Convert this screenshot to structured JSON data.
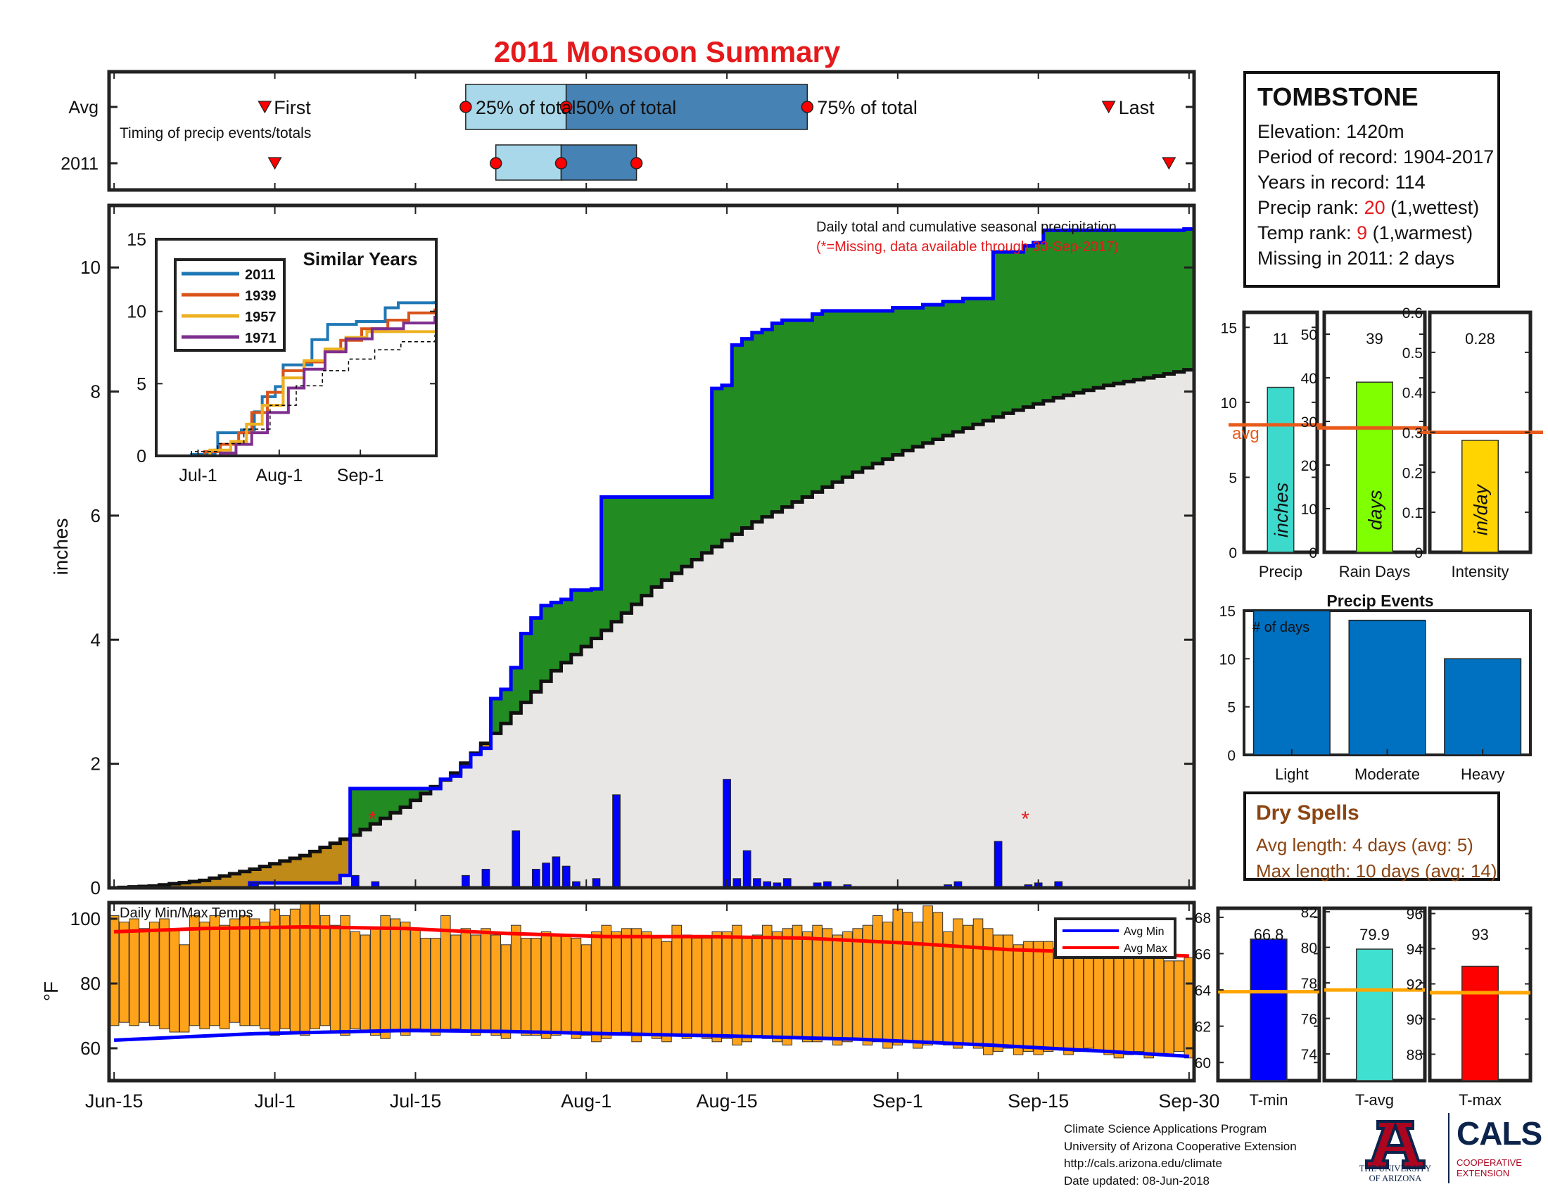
{
  "title": "2011 Monsoon Summary",
  "colors": {
    "title": "#e41a1c",
    "green": "#228b22",
    "brown": "#bf8a17",
    "blue": "#0000ff",
    "climo": "#e8e7e5",
    "temp_bar": "#ffa31a",
    "avg_line": "#e85a1a",
    "precip_bar": "#3dd9cc",
    "rain_bar": "#80ff00",
    "int_bar": "#ffd400",
    "events_bar": "#0070c0",
    "tmin_bar": "#0000ff",
    "tavg_bar": "#40e0d0",
    "tmax_bar": "#ff0000",
    "avg_temp_line": "#ffa500"
  },
  "timing": {
    "rows": [
      "Avg",
      "2011"
    ],
    "first_label": "First",
    "last_label": "Last",
    "note": "Timing of precip events/totals",
    "q25_label": "25% of total",
    "q50_label": "50% of total",
    "q75_label": "75% of total",
    "avg": {
      "first": 16,
      "q25": 36,
      "q50": 46,
      "q75": 70,
      "last": 100
    },
    "y2011": {
      "first": 17,
      "q25": 39,
      "q50": 45.5,
      "q75": 53,
      "last": 106
    }
  },
  "station": {
    "name": "TOMBSTONE",
    "elevation": "Elevation: 1420m",
    "period": "Period of record: 1904-2017",
    "years": "Years in record: 114",
    "precip_rank_pre": "Precip rank: ",
    "precip_rank_val": "20",
    "precip_rank_post": " (1,wettest)",
    "temp_rank_pre": "Temp rank: ",
    "temp_rank_val": "9",
    "temp_rank_post": " (1,warmest)",
    "missing": "Missing in 2011: 2 days"
  },
  "dry_spells": {
    "title": "Dry Spells",
    "avg_length": "Avg length: 4 days (avg: 5)",
    "max_length": "Max length: 10 days (avg: 14)"
  },
  "credits": [
    "Climate Science Applications Program",
    "University of Arizona Cooperative Extension",
    "http://cals.arizona.edu/climate",
    " Date updated: 08-Jun-2018"
  ],
  "logos": {
    "ua_text_1": "THE UNIVERSITY",
    "ua_text_2": "OF ARIZONA",
    "cals": "CALS",
    "coop_1": "COOPERATIVE",
    "coop_2": "EXTENSION"
  },
  "chart_data": [
    {
      "id": "precip_main",
      "type": "area",
      "ylabel": "inches",
      "ylim": [
        0,
        11
      ],
      "yticks": [
        0,
        2,
        4,
        6,
        8,
        10
      ],
      "x_unit": "day of season (1 = Jun-15)",
      "xlim": [
        1,
        108
      ],
      "xticks": [
        {
          "day": 1,
          "label": "Jun-15"
        },
        {
          "day": 17,
          "label": "Jul-1"
        },
        {
          "day": 31,
          "label": "Jul-15"
        },
        {
          "day": 48,
          "label": "Aug-1"
        },
        {
          "day": 62,
          "label": "Aug-15"
        },
        {
          "day": 79,
          "label": "Sep-1"
        },
        {
          "day": 93,
          "label": "Sep-15"
        },
        {
          "day": 108,
          "label": "Sep-30"
        }
      ],
      "annotation": "Daily total and cumulative seasonal precipitation",
      "missing_note": "(*=Missing, data available through 30-Sep-2017)",
      "daily_precip": [
        [
          15,
          0.08
        ],
        [
          25,
          0.2
        ],
        [
          27,
          0.1
        ],
        [
          36,
          0.2
        ],
        [
          38,
          0.3
        ],
        [
          41,
          0.92
        ],
        [
          43,
          0.3
        ],
        [
          44,
          0.4
        ],
        [
          45,
          0.5
        ],
        [
          46,
          0.35
        ],
        [
          47,
          0.1
        ],
        [
          49,
          0.15
        ],
        [
          51,
          1.5
        ],
        [
          62,
          1.75
        ],
        [
          63,
          0.15
        ],
        [
          64,
          0.6
        ],
        [
          65,
          0.15
        ],
        [
          66,
          0.1
        ],
        [
          67,
          0.08
        ],
        [
          68,
          0.15
        ],
        [
          71,
          0.08
        ],
        [
          72,
          0.1
        ],
        [
          74,
          0.05
        ],
        [
          84,
          0.05
        ],
        [
          85,
          0.1
        ],
        [
          89,
          0.75
        ],
        [
          92,
          0.05
        ],
        [
          93,
          0.08
        ],
        [
          95,
          0.1
        ]
      ],
      "missing_days": [
        26,
        91
      ],
      "cumulative_2011": [
        [
          1,
          0
        ],
        [
          14,
          0
        ],
        [
          15,
          0.08
        ],
        [
          24,
          0.2
        ],
        [
          25,
          1.6
        ],
        [
          33,
          1.6
        ],
        [
          34,
          1.75
        ],
        [
          35,
          1.8
        ],
        [
          36,
          1.95
        ],
        [
          37,
          2.15
        ],
        [
          38,
          2.25
        ],
        [
          39,
          3.05
        ],
        [
          40,
          3.2
        ],
        [
          41,
          3.55
        ],
        [
          42,
          4.1
        ],
        [
          43,
          4.35
        ],
        [
          44,
          4.55
        ],
        [
          45,
          4.6
        ],
        [
          46,
          4.65
        ],
        [
          47,
          4.8
        ],
        [
          49,
          4.82
        ],
        [
          50,
          6.3
        ],
        [
          60,
          6.3
        ],
        [
          61,
          8.05
        ],
        [
          62,
          8.1
        ],
        [
          63,
          8.75
        ],
        [
          64,
          8.85
        ],
        [
          65,
          8.95
        ],
        [
          66,
          9.0
        ],
        [
          67,
          9.1
        ],
        [
          68,
          9.15
        ],
        [
          71,
          9.25
        ],
        [
          72,
          9.3
        ],
        [
          78,
          9.3
        ],
        [
          79,
          9.35
        ],
        [
          82,
          9.4
        ],
        [
          84,
          9.45
        ],
        [
          86,
          9.5
        ],
        [
          88,
          9.5
        ],
        [
          89,
          10.25
        ],
        [
          92,
          10.35
        ],
        [
          93,
          10.4
        ],
        [
          94,
          10.6
        ],
        [
          108,
          10.62
        ]
      ],
      "climatology": [
        [
          1,
          0
        ],
        [
          5,
          0.03
        ],
        [
          10,
          0.12
        ],
        [
          15,
          0.3
        ],
        [
          20,
          0.52
        ],
        [
          25,
          0.85
        ],
        [
          30,
          1.3
        ],
        [
          35,
          1.85
        ],
        [
          40,
          2.65
        ],
        [
          45,
          3.5
        ],
        [
          50,
          4.15
        ],
        [
          55,
          4.85
        ],
        [
          60,
          5.4
        ],
        [
          65,
          5.9
        ],
        [
          70,
          6.3
        ],
        [
          75,
          6.7
        ],
        [
          80,
          7.05
        ],
        [
          85,
          7.35
        ],
        [
          90,
          7.65
        ],
        [
          95,
          7.9
        ],
        [
          100,
          8.1
        ],
        [
          105,
          8.25
        ],
        [
          108,
          8.35
        ]
      ]
    },
    {
      "id": "similar_years",
      "type": "line",
      "title": "Similar Years",
      "ylim": [
        0,
        15
      ],
      "yticks": [
        0,
        5,
        10,
        15
      ],
      "xticks": [
        {
          "day": 17,
          "label": "Jul-1"
        },
        {
          "day": 48,
          "label": "Aug-1"
        },
        {
          "day": 79,
          "label": "Sep-1"
        }
      ],
      "series": [
        {
          "name": "2011",
          "color": "#1f77b4",
          "points": [
            [
              1,
              0
            ],
            [
              15,
              0.1
            ],
            [
              24,
              0.4
            ],
            [
              25,
              1.6
            ],
            [
              34,
              1.8
            ],
            [
              39,
              3.05
            ],
            [
              42,
              4.1
            ],
            [
              47,
              4.8
            ],
            [
              50,
              6.3
            ],
            [
              61,
              8.05
            ],
            [
              67,
              9.1
            ],
            [
              78,
              9.3
            ],
            [
              89,
              10.25
            ],
            [
              94,
              10.6
            ],
            [
              108,
              10.62
            ]
          ]
        },
        {
          "name": "1939",
          "color": "#d95319",
          "points": [
            [
              1,
              0
            ],
            [
              20,
              0.3
            ],
            [
              26,
              0.8
            ],
            [
              33,
              1.6
            ],
            [
              38,
              3.0
            ],
            [
              44,
              4.4
            ],
            [
              50,
              5.9
            ],
            [
              58,
              6.5
            ],
            [
              66,
              7.2
            ],
            [
              72,
              8.0
            ],
            [
              80,
              8.8
            ],
            [
              90,
              9.4
            ],
            [
              98,
              9.9
            ],
            [
              108,
              10.1
            ]
          ]
        },
        {
          "name": "1957",
          "color": "#edb120",
          "points": [
            [
              1,
              0
            ],
            [
              22,
              0.4
            ],
            [
              30,
              1.0
            ],
            [
              36,
              2.2
            ],
            [
              42,
              3.5
            ],
            [
              50,
              5.4
            ],
            [
              58,
              6.6
            ],
            [
              66,
              7.4
            ],
            [
              74,
              8.2
            ],
            [
              82,
              8.6
            ],
            [
              108,
              8.6
            ]
          ]
        },
        {
          "name": "1971",
          "color": "#7e2f8e",
          "points": [
            [
              1,
              0
            ],
            [
              26,
              0.2
            ],
            [
              32,
              0.8
            ],
            [
              38,
              1.6
            ],
            [
              44,
              3.0
            ],
            [
              52,
              4.7
            ],
            [
              58,
              6.0
            ],
            [
              66,
              7.2
            ],
            [
              74,
              8.1
            ],
            [
              84,
              8.8
            ],
            [
              96,
              9.2
            ],
            [
              108,
              9.6
            ]
          ]
        },
        {
          "name": "",
          "color": "#000000",
          "dash": true,
          "points": [
            [
              1,
              0
            ],
            [
              15,
              0.3
            ],
            [
              25,
              0.85
            ],
            [
              35,
              1.85
            ],
            [
              45,
              3.5
            ],
            [
              55,
              4.85
            ],
            [
              65,
              5.9
            ],
            [
              75,
              6.7
            ],
            [
              85,
              7.35
            ],
            [
              95,
              7.9
            ],
            [
              108,
              8.35
            ]
          ]
        }
      ]
    },
    {
      "id": "temps",
      "type": "bar",
      "title": "Daily Min/Max Temps",
      "ylabel": "°F",
      "ylim": [
        50,
        105
      ],
      "yticks": [
        60,
        80,
        100
      ],
      "legend": [
        "Avg Min",
        "Avg Max"
      ],
      "tmax": [
        101,
        99,
        100,
        97,
        99,
        100,
        97,
        92,
        101,
        99,
        101,
        98,
        100,
        101,
        100,
        99,
        103,
        101,
        103,
        106,
        106,
        101,
        98,
        101,
        96,
        95,
        97,
        101,
        100,
        99,
        97,
        94,
        94,
        101,
        95,
        97,
        95,
        97,
        95,
        92,
        98,
        94,
        94,
        96,
        95,
        95,
        94,
        92,
        96,
        98,
        96,
        97,
        97,
        96,
        94,
        93,
        98,
        95,
        94,
        94,
        96,
        96,
        98,
        94,
        95,
        98,
        96,
        97,
        98,
        96,
        98,
        97,
        95,
        96,
        97,
        98,
        101,
        99,
        103,
        102,
        99,
        104,
        102,
        96,
        100,
        98,
        100,
        97,
        95,
        95,
        92,
        93,
        93,
        93,
        91,
        92,
        93,
        91,
        96,
        90,
        92,
        92,
        90,
        89,
        92,
        87,
        87,
        88
      ],
      "tmin": [
        67,
        68,
        67,
        68,
        67,
        66,
        65,
        65,
        67,
        66,
        67,
        66,
        68,
        67,
        67,
        66,
        64,
        66,
        65,
        64,
        66,
        67,
        65,
        64,
        66,
        65,
        64,
        63,
        65,
        64,
        66,
        65,
        64,
        65,
        66,
        65,
        64,
        65,
        64,
        63,
        65,
        64,
        64,
        63,
        64,
        65,
        63,
        64,
        62,
        63,
        64,
        65,
        62,
        64,
        63,
        62,
        64,
        63,
        64,
        63,
        62,
        63,
        61,
        62,
        64,
        63,
        62,
        61,
        63,
        62,
        62,
        63,
        61,
        62,
        63,
        61,
        62,
        60,
        61,
        62,
        60,
        61,
        62,
        61,
        60,
        61,
        60,
        58,
        59,
        60,
        58,
        59,
        58,
        59,
        60,
        58,
        59,
        60,
        59,
        58,
        57,
        58,
        59,
        57,
        58,
        58,
        59,
        57
      ],
      "avg_min": [
        [
          1,
          62.5
        ],
        [
          15,
          64.5
        ],
        [
          30,
          65.5
        ],
        [
          40,
          65.2
        ],
        [
          50,
          64.5
        ],
        [
          62,
          63.8
        ],
        [
          75,
          62.8
        ],
        [
          88,
          61.0
        ],
        [
          100,
          59.0
        ],
        [
          108,
          57.5
        ]
      ],
      "avg_max": [
        [
          1,
          96
        ],
        [
          10,
          97
        ],
        [
          20,
          97.5
        ],
        [
          30,
          97
        ],
        [
          40,
          95.5
        ],
        [
          50,
          94.5
        ],
        [
          60,
          94.5
        ],
        [
          70,
          94
        ],
        [
          80,
          92.5
        ],
        [
          90,
          90.5
        ],
        [
          100,
          89.5
        ],
        [
          108,
          88.5
        ]
      ]
    },
    {
      "id": "precip_total",
      "type": "bar",
      "categories": [
        "Precip"
      ],
      "values": [
        11
      ],
      "label": "11",
      "avg": 8.5,
      "avg_label": "avg",
      "bar_text": "inches",
      "ylim": [
        0,
        16
      ],
      "yticks": [
        0,
        5,
        10,
        15
      ]
    },
    {
      "id": "rain_days",
      "type": "bar",
      "categories": [
        "Rain Days"
      ],
      "values": [
        39
      ],
      "label": "39",
      "avg": 28.5,
      "bar_text": "days",
      "ylim": [
        0,
        55
      ],
      "yticks": [
        0,
        10,
        20,
        30,
        40,
        50
      ]
    },
    {
      "id": "intensity",
      "type": "bar",
      "categories": [
        "Intensity"
      ],
      "values": [
        0.28
      ],
      "label": "0.28",
      "avg": 0.3,
      "bar_text": "in/day",
      "ylim": [
        0,
        0.6
      ],
      "yticks": [
        0,
        0.1,
        0.2,
        0.3,
        0.4,
        0.5,
        0.6
      ]
    },
    {
      "id": "precip_events",
      "type": "bar",
      "title": "Precip Events",
      "inner_label": "# of days",
      "categories": [
        "Light",
        "Moderate",
        "Heavy"
      ],
      "values": [
        15,
        14,
        10
      ],
      "ylim": [
        0,
        15
      ],
      "yticks": [
        0,
        5,
        10,
        15
      ]
    },
    {
      "id": "t_min",
      "type": "bar",
      "categories": [
        "T-min"
      ],
      "values": [
        66.8
      ],
      "label": "66.8",
      "avg": 63.9,
      "ylim": [
        59,
        68.5
      ],
      "yticks": [
        60,
        62,
        64,
        66,
        68
      ]
    },
    {
      "id": "t_avg",
      "type": "bar",
      "categories": [
        "T-avg"
      ],
      "values": [
        79.9
      ],
      "label": "79.9",
      "avg": 77.6,
      "ylim": [
        72.5,
        82.2
      ],
      "yticks": [
        74,
        76,
        78,
        80,
        82
      ]
    },
    {
      "id": "t_max",
      "type": "bar",
      "categories": [
        "T-max"
      ],
      "values": [
        93
      ],
      "label": "93",
      "avg": 91.5,
      "ylim": [
        86.5,
        96.3
      ],
      "yticks": [
        88,
        90,
        92,
        94,
        96
      ]
    }
  ]
}
